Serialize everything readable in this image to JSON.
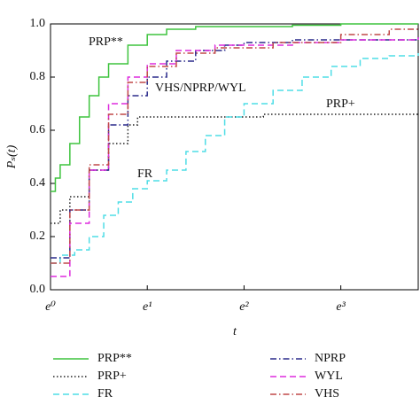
{
  "chart_data": {
    "type": "line",
    "xlabel": "t",
    "ylabel": "Pₛ(t)",
    "xlim": [
      0,
      3.8
    ],
    "ylim": [
      0,
      1
    ],
    "xticks": [
      {
        "value": 0,
        "label": "e⁰"
      },
      {
        "value": 1,
        "label": "e¹"
      },
      {
        "value": 2,
        "label": "e²"
      },
      {
        "value": 3,
        "label": "e³"
      }
    ],
    "yticks": [
      {
        "value": 0,
        "label": "0.0"
      },
      {
        "value": 0.2,
        "label": "0.2"
      },
      {
        "value": 0.4,
        "label": "0.4"
      },
      {
        "value": 0.6,
        "label": "0.6"
      },
      {
        "value": 0.8,
        "label": "0.8"
      },
      {
        "value": 1,
        "label": "1.0"
      }
    ],
    "annotations": [
      "PRP**",
      "VHS/NPRP/WYL",
      "PRP+",
      "FR"
    ],
    "series": [
      {
        "name": "PRP**",
        "color": "#3ec43e",
        "dash": "solid",
        "x": [
          0,
          0.05,
          0.1,
          0.2,
          0.3,
          0.4,
          0.5,
          0.6,
          0.8,
          1.0,
          1.2,
          1.5,
          2.5,
          3.0,
          3.8
        ],
        "values": [
          0.37,
          0.42,
          0.47,
          0.55,
          0.65,
          0.73,
          0.8,
          0.85,
          0.92,
          0.96,
          0.98,
          0.99,
          0.995,
          1.0,
          1.0
        ]
      },
      {
        "name": "PRP+",
        "color": "#222222",
        "dash": "dotted",
        "x": [
          0,
          0.1,
          0.2,
          0.4,
          0.6,
          0.8,
          0.9,
          2.0,
          2.2,
          3.8
        ],
        "values": [
          0.25,
          0.3,
          0.35,
          0.45,
          0.55,
          0.62,
          0.65,
          0.65,
          0.66,
          0.66
        ]
      },
      {
        "name": "FR",
        "color": "#4fdde6",
        "dash": "dashed",
        "x": [
          0,
          0.1,
          0.25,
          0.4,
          0.55,
          0.7,
          0.85,
          1.0,
          1.2,
          1.4,
          1.6,
          1.8,
          2.0,
          2.3,
          2.6,
          2.9,
          3.2,
          3.5,
          3.8
        ],
        "values": [
          0.1,
          0.13,
          0.15,
          0.2,
          0.28,
          0.33,
          0.38,
          0.41,
          0.45,
          0.52,
          0.58,
          0.65,
          0.7,
          0.75,
          0.8,
          0.84,
          0.87,
          0.88,
          0.89
        ]
      },
      {
        "name": "NPRP",
        "color": "#2b2b8c",
        "dash": "dashdot",
        "x": [
          0,
          0.2,
          0.4,
          0.6,
          0.8,
          1.0,
          1.2,
          1.5,
          1.8,
          2.0,
          2.5,
          3.8
        ],
        "values": [
          0.12,
          0.3,
          0.45,
          0.62,
          0.73,
          0.8,
          0.86,
          0.9,
          0.92,
          0.93,
          0.94,
          0.95
        ]
      },
      {
        "name": "WYL",
        "color": "#dd2bdd",
        "dash": "dashed",
        "x": [
          0,
          0.2,
          0.4,
          0.6,
          0.8,
          1.0,
          1.3,
          1.7,
          2.5,
          3.0,
          3.8
        ],
        "values": [
          0.05,
          0.25,
          0.45,
          0.7,
          0.8,
          0.85,
          0.9,
          0.92,
          0.93,
          0.94,
          0.95
        ]
      },
      {
        "name": "VHS",
        "color": "#c04848",
        "dash": "dashdot",
        "x": [
          0,
          0.2,
          0.4,
          0.6,
          0.8,
          1.0,
          1.3,
          1.7,
          2.3,
          3.0,
          3.5,
          3.8
        ],
        "values": [
          0.1,
          0.3,
          0.47,
          0.66,
          0.78,
          0.84,
          0.89,
          0.91,
          0.93,
          0.96,
          0.98,
          0.99
        ]
      }
    ]
  }
}
